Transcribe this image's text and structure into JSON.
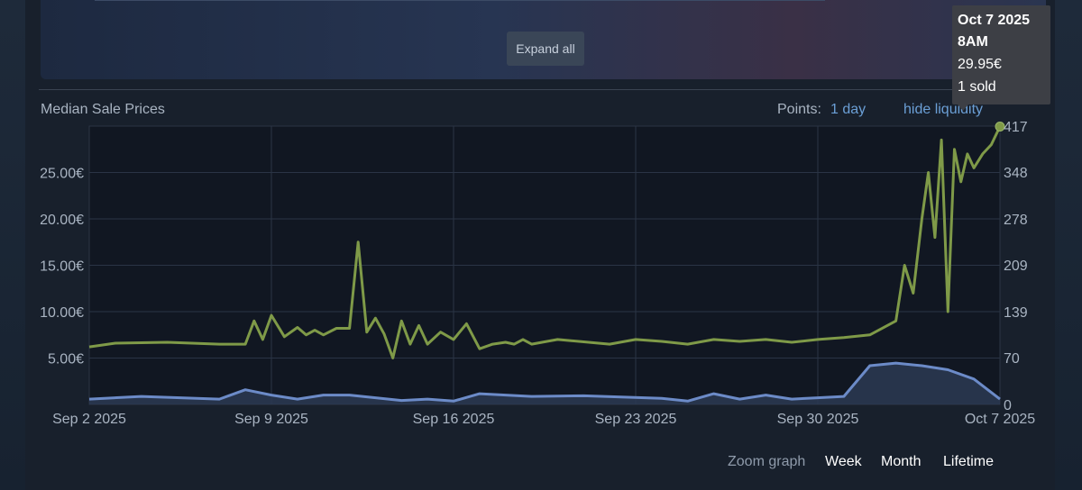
{
  "expand_button": "Expand all",
  "title": "Median Sale Prices",
  "points_label": "Points:",
  "points_value": "1 day",
  "hide_liquidity": "hide liquidity",
  "zoom": {
    "label": "Zoom graph",
    "week": "Week",
    "month": "Month",
    "lifetime": "Lifetime"
  },
  "tooltip": {
    "date": "Oct 7 2025",
    "time": "8AM",
    "price": "29.95€",
    "sold": "1 sold"
  },
  "colors": {
    "price": "#7f9a48",
    "volume": "#6c8bc8",
    "background": "#111722"
  },
  "chart_data": {
    "type": "line",
    "xlabel": "",
    "ylabel": "",
    "x_ticks": [
      "Sep 2 2025",
      "Sep 9 2025",
      "Sep 16 2025",
      "Sep 23 2025",
      "Sep 30 2025",
      "Oct 7 2025"
    ],
    "y_ticks": [
      "5.00€",
      "10.00€",
      "15.00€",
      "20.00€",
      "25.00€"
    ],
    "y2_ticks": [
      "0",
      "70",
      "139",
      "209",
      "278",
      "348",
      "417"
    ],
    "ylim": [
      0,
      30
    ],
    "y2lim": [
      0,
      417
    ],
    "xlim": [
      "2025-09-02",
      "2025-10-07"
    ],
    "grid": true,
    "series": [
      {
        "axis": "left",
        "x": [
          "2025-09-02",
          "2025-09-03",
          "2025-09-05",
          "2025-09-07",
          "2025-09-08",
          "2025-09-08",
          "2025-09-08",
          "2025-09-09",
          "2025-09-09",
          "2025-09-10",
          "2025-09-10",
          "2025-09-10",
          "2025-09-11",
          "2025-09-11",
          "2025-09-12",
          "2025-09-12",
          "2025-09-12",
          "2025-09-13",
          "2025-09-13",
          "2025-09-13",
          "2025-09-14",
          "2025-09-14",
          "2025-09-14",
          "2025-09-15",
          "2025-09-15",
          "2025-09-16",
          "2025-09-16",
          "2025-09-17",
          "2025-09-17",
          "2025-09-18",
          "2025-09-18",
          "2025-09-18",
          "2025-09-19",
          "2025-09-20",
          "2025-09-22",
          "2025-09-23",
          "2025-09-24",
          "2025-09-25",
          "2025-09-26",
          "2025-09-27",
          "2025-09-28",
          "2025-09-29",
          "2025-09-30",
          "2025-10-01",
          "2025-10-02",
          "2025-10-03",
          "2025-10-03",
          "2025-10-03",
          "2025-10-04",
          "2025-10-04",
          "2025-10-04",
          "2025-10-04",
          "2025-10-05",
          "2025-10-05",
          "2025-10-05",
          "2025-10-05",
          "2025-10-06",
          "2025-10-06",
          "2025-10-06",
          "2025-10-07"
        ],
        "values": [
          6.2,
          6.6,
          6.7,
          6.5,
          6.5,
          9.0,
          7.0,
          9.6,
          7.3,
          8.3,
          7.5,
          8.0,
          7.5,
          8.2,
          8.2,
          17.5,
          7.8,
          9.3,
          7.6,
          5.0,
          9.0,
          6.5,
          8.5,
          6.5,
          7.8,
          7.0,
          8.7,
          6.0,
          6.5,
          6.7,
          6.5,
          7.0,
          6.5,
          7.0,
          6.5,
          7.0,
          6.8,
          6.5,
          7.0,
          6.8,
          7.0,
          6.7,
          7.0,
          7.2,
          7.5,
          9.0,
          15.0,
          12.0,
          20.0,
          25.0,
          18.0,
          28.5,
          10.0,
          27.5,
          24.0,
          27.0,
          25.5,
          27.0,
          28.0,
          29.95
        ]
      },
      {
        "axis": "right",
        "x": [
          "2025-09-02",
          "2025-09-04",
          "2025-09-07",
          "2025-09-08",
          "2025-09-09",
          "2025-09-10",
          "2025-09-11",
          "2025-09-12",
          "2025-09-14",
          "2025-09-15",
          "2025-09-16",
          "2025-09-17",
          "2025-09-19",
          "2025-09-21",
          "2025-09-24",
          "2025-09-25",
          "2025-09-26",
          "2025-09-27",
          "2025-09-28",
          "2025-09-29",
          "2025-09-30",
          "2025-10-01",
          "2025-10-02",
          "2025-10-03",
          "2025-10-04",
          "2025-10-05",
          "2025-10-06",
          "2025-10-07"
        ],
        "values": [
          8,
          12,
          8,
          22,
          14,
          8,
          14,
          14,
          6,
          8,
          5,
          16,
          12,
          13,
          9,
          5,
          16,
          8,
          14,
          8,
          10,
          12,
          58,
          62,
          58,
          52,
          38,
          8
        ]
      }
    ]
  }
}
